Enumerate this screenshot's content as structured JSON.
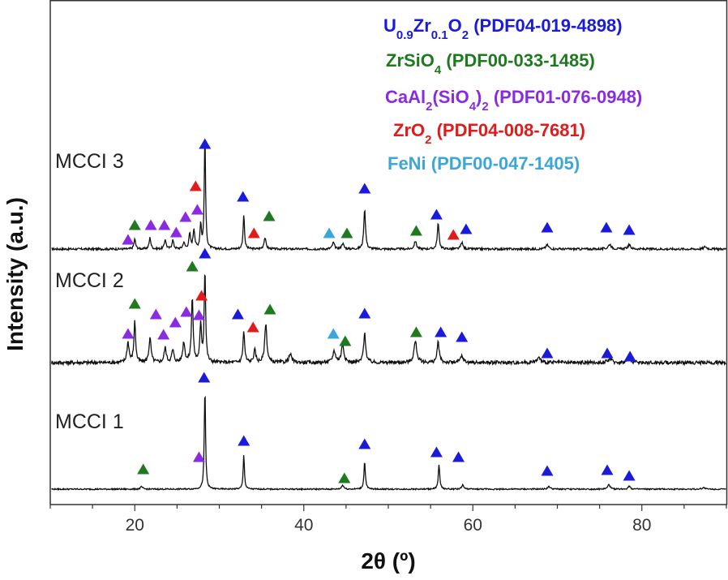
{
  "chart_data": {
    "type": "line",
    "title": "",
    "xlabel": "2θ (º)",
    "ylabel": "Intensity (a.u.)",
    "xlim": [
      10,
      90
    ],
    "x_ticks": [
      20,
      40,
      60,
      80
    ],
    "y_ticks_shown": false,
    "legend_position": "top-right",
    "legend": [
      {
        "id": "U",
        "prefix": "U",
        "sub1": "0.9",
        "mid": "Zr",
        "sub2": "0.1",
        "post": "O",
        "sub3": "2",
        "tail": " (PDF04-019-4898)",
        "phase": "U0.9Zr0.1O2",
        "color": "#1a1adb"
      },
      {
        "id": "ZS",
        "prefix": "ZrSiO",
        "sub1": "4",
        "tail": " (PDF00-033-1485)",
        "phase": "ZrSiO4",
        "color": "#1f7a1f"
      },
      {
        "id": "CA",
        "prefix": "CaAl",
        "sub1": "2",
        "mid": "(SiO",
        "sub2": "4",
        "post": ")",
        "sub3": "2",
        "tail": " (PDF01-076-0948)",
        "phase": "CaAl2(SiO4)2",
        "color": "#8a2be2"
      },
      {
        "id": "ZO",
        "prefix": "ZrO",
        "sub1": "2",
        "tail": " (PDF04-008-7681)",
        "phase": "ZrO2",
        "color": "#e01b1b"
      },
      {
        "id": "FN",
        "prefix": "FeNi",
        "tail": " (PDF00-047-1405)",
        "phase": "FeNi",
        "color": "#3ba7d9"
      }
    ],
    "series": [
      {
        "name": "MCCI 3",
        "noise": 1.3,
        "peaks": [
          [
            20.0,
            12,
            0.12
          ],
          [
            21.8,
            14,
            0.12
          ],
          [
            23.6,
            12,
            0.12
          ],
          [
            24.5,
            11,
            0.12
          ],
          [
            25.8,
            8,
            0.12
          ],
          [
            26.5,
            18,
            0.12
          ],
          [
            27.0,
            24,
            0.12
          ],
          [
            27.8,
            30,
            0.1
          ],
          [
            28.3,
            140,
            0.09
          ],
          [
            32.9,
            42,
            0.1
          ],
          [
            35.4,
            14,
            0.14
          ],
          [
            43.5,
            8,
            0.15
          ],
          [
            44.6,
            7,
            0.15
          ],
          [
            47.2,
            50,
            0.12
          ],
          [
            53.2,
            10,
            0.15
          ],
          [
            55.9,
            32,
            0.12
          ],
          [
            58.7,
            8,
            0.15
          ],
          [
            68.8,
            5,
            0.2
          ],
          [
            76.2,
            6,
            0.2
          ],
          [
            78.5,
            5,
            0.2
          ],
          [
            87.5,
            3,
            0.2
          ]
        ],
        "markers": [
          [
            "CA",
            19.2,
            12
          ],
          [
            "ZS",
            20.0,
            30
          ],
          [
            "CA",
            21.9,
            30
          ],
          [
            "CA",
            23.5,
            30
          ],
          [
            "CA",
            24.9,
            21
          ],
          [
            "CA",
            26.0,
            40
          ],
          [
            "CA",
            27.4,
            49
          ],
          [
            "ZO",
            27.2,
            78
          ],
          [
            "U",
            28.3,
            130
          ],
          [
            "U",
            32.8,
            65
          ],
          [
            "ZO",
            34.1,
            20
          ],
          [
            "ZS",
            35.9,
            41
          ],
          [
            "FN",
            43.0,
            20
          ],
          [
            "ZS",
            45.1,
            20
          ],
          [
            "U",
            47.2,
            75
          ],
          [
            "ZS",
            53.3,
            23
          ],
          [
            "U",
            55.7,
            43
          ],
          [
            "ZO",
            57.7,
            18
          ],
          [
            "U",
            59.2,
            25
          ],
          [
            "U",
            68.8,
            27
          ],
          [
            "U",
            75.8,
            27
          ],
          [
            "U",
            78.5,
            24
          ]
        ]
      },
      {
        "name": "MCCI 2",
        "noise": 2.2,
        "peaks": [
          [
            19.2,
            25,
            0.15
          ],
          [
            20.0,
            50,
            0.12
          ],
          [
            21.8,
            30,
            0.15
          ],
          [
            23.6,
            18,
            0.15
          ],
          [
            24.5,
            15,
            0.15
          ],
          [
            25.8,
            25,
            0.15
          ],
          [
            26.8,
            80,
            0.12
          ],
          [
            27.8,
            45,
            0.12
          ],
          [
            28.3,
            115,
            0.1
          ],
          [
            32.9,
            38,
            0.12
          ],
          [
            34.2,
            15,
            0.15
          ],
          [
            35.5,
            48,
            0.15
          ],
          [
            38.4,
            10,
            0.2
          ],
          [
            43.6,
            14,
            0.2
          ],
          [
            44.6,
            22,
            0.18
          ],
          [
            47.2,
            36,
            0.15
          ],
          [
            53.2,
            26,
            0.2
          ],
          [
            55.9,
            25,
            0.15
          ],
          [
            58.7,
            8,
            0.2
          ],
          [
            67.8,
            6,
            0.25
          ],
          [
            76.2,
            5,
            0.25
          ],
          [
            78.5,
            5,
            0.25
          ]
        ],
        "markers": [
          [
            "CA",
            19.2,
            36
          ],
          [
            "ZS",
            20.0,
            73
          ],
          [
            "CA",
            22.5,
            60
          ],
          [
            "CA",
            23.4,
            35
          ],
          [
            "CA",
            24.8,
            50
          ],
          [
            "CA",
            26.1,
            63
          ],
          [
            "ZS",
            26.8,
            119
          ],
          [
            "ZO",
            27.9,
            83
          ],
          [
            "CA",
            27.6,
            59
          ],
          [
            "U",
            28.3,
            135
          ],
          [
            "U",
            32.2,
            60
          ],
          [
            "ZO",
            34.0,
            44
          ],
          [
            "ZS",
            36.0,
            66
          ],
          [
            "FN",
            43.5,
            36
          ],
          [
            "ZS",
            44.9,
            27
          ],
          [
            "U",
            47.2,
            61
          ],
          [
            "ZS",
            53.3,
            38
          ],
          [
            "U",
            56.2,
            38
          ],
          [
            "U",
            58.7,
            32
          ],
          [
            "U",
            68.8,
            12
          ],
          [
            "U",
            75.9,
            12
          ],
          [
            "U",
            78.6,
            8
          ]
        ]
      },
      {
        "name": "MCCI 1",
        "noise": 0.8,
        "peaks": [
          [
            20.8,
            3,
            0.15
          ],
          [
            28.3,
            125,
            0.09
          ],
          [
            32.9,
            42,
            0.09
          ],
          [
            44.6,
            5,
            0.15
          ],
          [
            47.2,
            34,
            0.1
          ],
          [
            56.0,
            31,
            0.1
          ],
          [
            58.8,
            5,
            0.15
          ],
          [
            69.0,
            3,
            0.2
          ],
          [
            76.1,
            6,
            0.15
          ],
          [
            78.5,
            4,
            0.15
          ],
          [
            87.3,
            2,
            0.2
          ]
        ],
        "markers": [
          [
            "ZS",
            21.0,
            25
          ],
          [
            "CA",
            27.6,
            40
          ],
          [
            "U",
            28.2,
            138
          ],
          [
            "U",
            32.9,
            60
          ],
          [
            "ZS",
            44.8,
            14
          ],
          [
            "U",
            47.2,
            56
          ],
          [
            "U",
            55.7,
            46
          ],
          [
            "U",
            58.3,
            40
          ],
          [
            "U",
            68.8,
            23
          ],
          [
            "U",
            75.9,
            24
          ],
          [
            "U",
            78.5,
            17
          ]
        ]
      }
    ]
  }
}
